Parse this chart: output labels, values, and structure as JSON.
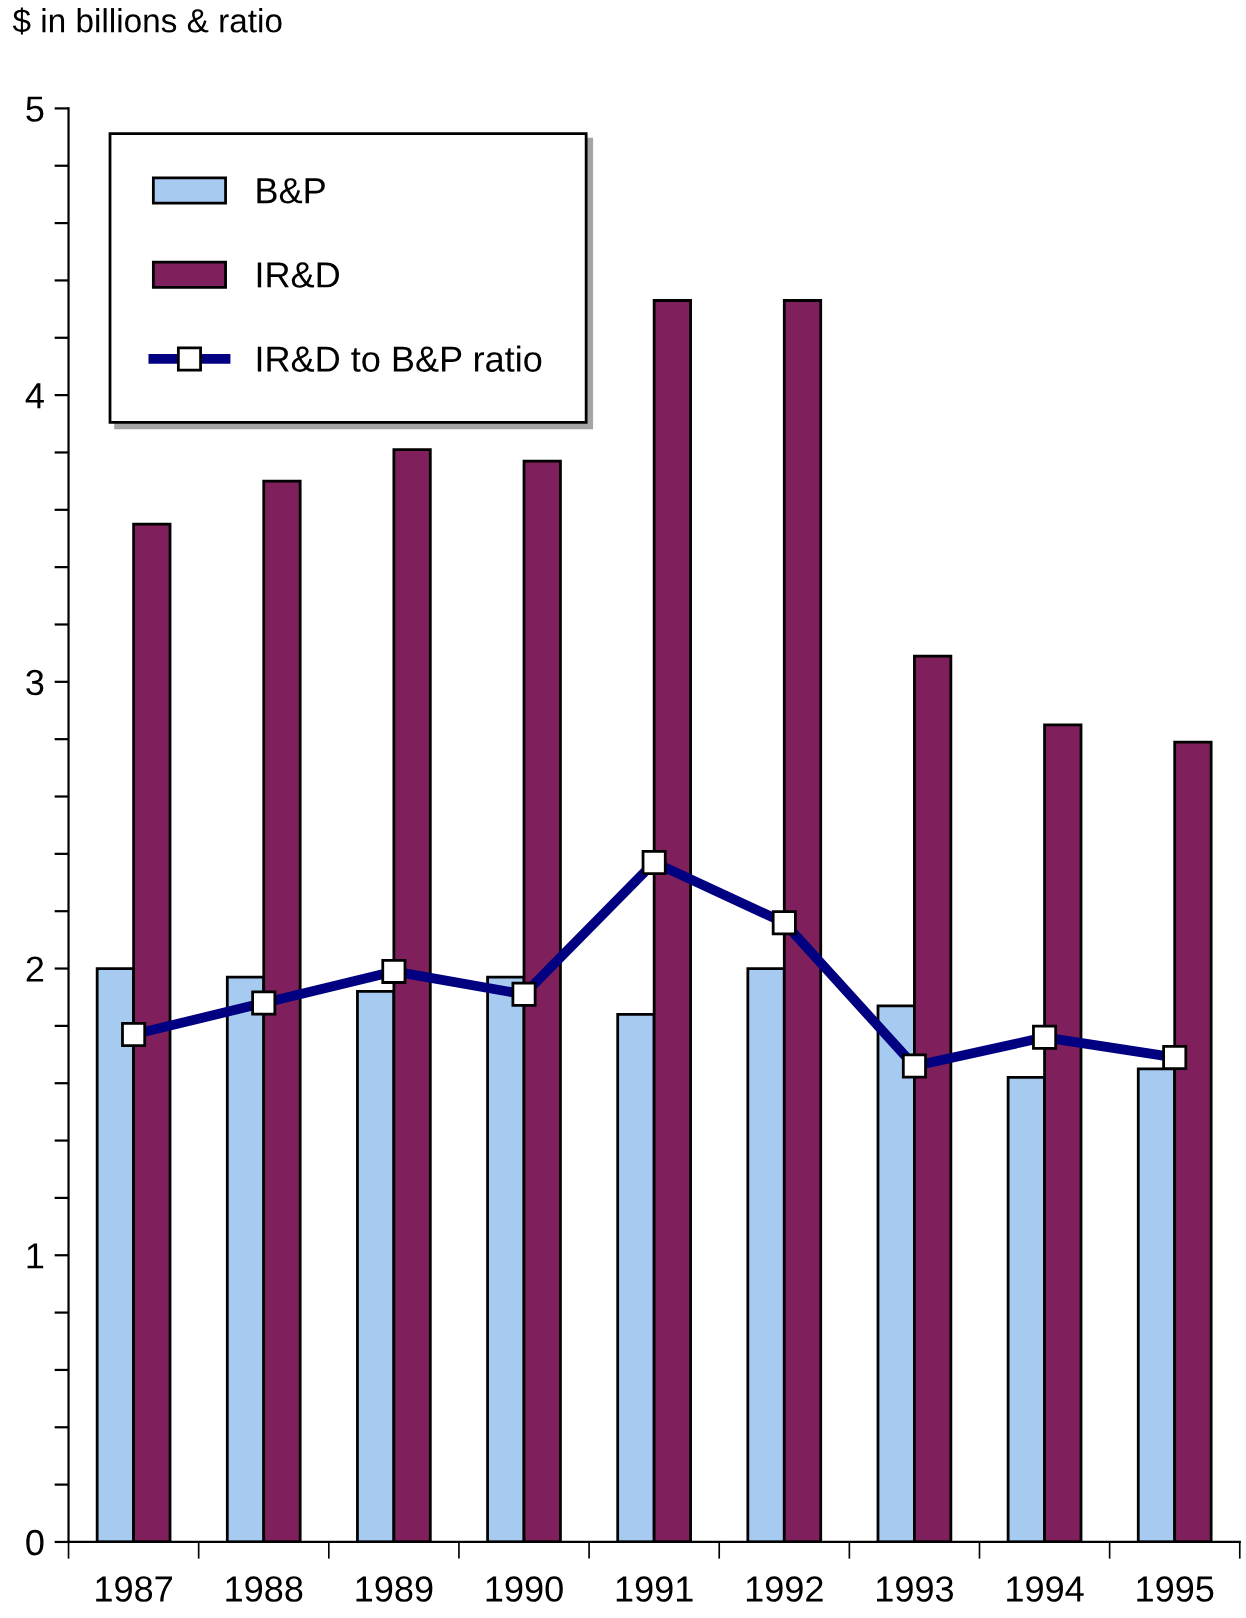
{
  "chart_data": {
    "type": "bar",
    "ylabel": "$ in billions & ratio",
    "categories": [
      "1987",
      "1988",
      "1989",
      "1990",
      "1991",
      "1992",
      "1993",
      "1994",
      "1995"
    ],
    "series": [
      {
        "name": "B&P",
        "color": "#a6caf0",
        "values": [
          2.0,
          1.97,
          1.92,
          1.97,
          1.84,
          2.0,
          1.87,
          1.62,
          1.65
        ]
      },
      {
        "name": "IR&D",
        "color": "#7f1f5c",
        "values": [
          3.55,
          3.7,
          3.81,
          3.77,
          4.33,
          4.33,
          3.09,
          2.85,
          2.79
        ]
      },
      {
        "name": "IR&D to B&P ratio",
        "type": "line",
        "color": "#000080",
        "marker": "square",
        "line_style": "solid",
        "values": [
          1.77,
          1.88,
          1.99,
          1.91,
          2.37,
          2.16,
          1.66,
          1.76,
          1.69
        ]
      }
    ],
    "ylim": [
      0,
      5
    ],
    "yticks": [
      0,
      {
        "value": 0.2,
        "label": null
      },
      {
        "value": 0.4,
        "label": null
      },
      {
        "value": 0.6,
        "label": null
      },
      {
        "value": 0.8,
        "label": null
      },
      1,
      {
        "value": 1.2,
        "label": null
      },
      {
        "value": 1.4,
        "label": null
      },
      {
        "value": 1.6,
        "label": null
      },
      {
        "value": 1.8,
        "label": null
      },
      2,
      {
        "value": 2.2,
        "label": null
      },
      {
        "value": 2.4,
        "label": null
      },
      {
        "value": 2.6,
        "label": null
      },
      {
        "value": 2.8,
        "label": null
      },
      3,
      {
        "value": 3.2,
        "label": null
      },
      {
        "value": 3.4,
        "label": null
      },
      {
        "value": 3.6,
        "label": null
      },
      {
        "value": 3.8,
        "label": null
      },
      4,
      {
        "value": 4.2,
        "label": null
      },
      {
        "value": 4.4,
        "label": null
      },
      {
        "value": 4.6,
        "label": null
      },
      {
        "value": 4.8,
        "label": null
      },
      5
    ],
    "grid": false,
    "legend": "top left"
  }
}
